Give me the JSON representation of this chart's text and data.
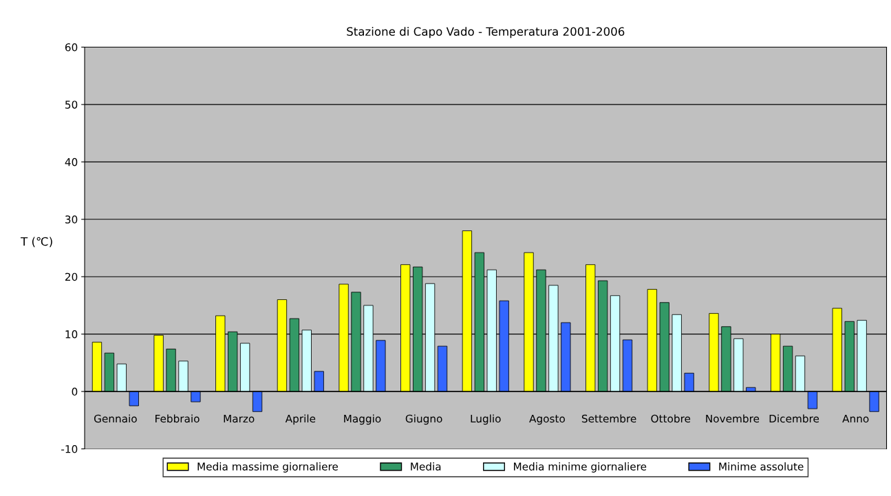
{
  "chart_data": {
    "type": "bar",
    "title": "Stazione di Capo Vado - Temperatura 2001-2006",
    "ylabel": "T (℃)",
    "categories": [
      "Gennaio",
      "Febbraio",
      "Marzo",
      "Aprile",
      "Maggio",
      "Giugno",
      "Luglio",
      "Agosto",
      "Settembre",
      "Ottobre",
      "Novembre",
      "Dicembre",
      "Anno"
    ],
    "series": [
      {
        "name": "Media massime giornaliere",
        "color": "#ffff00",
        "values": [
          8.6,
          9.8,
          13.2,
          16.0,
          18.7,
          22.1,
          28.0,
          24.2,
          22.1,
          17.8,
          13.6,
          10.0,
          14.5
        ]
      },
      {
        "name": "Media",
        "color": "#339966",
        "values": [
          6.7,
          7.4,
          10.4,
          12.7,
          17.3,
          21.7,
          24.2,
          21.2,
          19.3,
          15.5,
          11.3,
          7.9,
          12.2
        ]
      },
      {
        "name": "Media minime giornaliere",
        "color": "#ccffff",
        "values": [
          4.8,
          5.3,
          8.4,
          10.7,
          15.0,
          18.8,
          21.2,
          18.5,
          16.7,
          13.4,
          9.2,
          6.2,
          12.4
        ]
      },
      {
        "name": "Minime assolute",
        "color": "#3366ff",
        "values": [
          -2.5,
          -1.8,
          -3.5,
          3.5,
          8.9,
          7.9,
          15.8,
          12.0,
          9.0,
          3.2,
          0.7,
          -3.0,
          -3.5
        ]
      }
    ],
    "ylim": [
      -10,
      60
    ],
    "yticks": [
      -10,
      0,
      10,
      20,
      30,
      40,
      50,
      60
    ],
    "grid": "y",
    "legend": "bottom"
  }
}
